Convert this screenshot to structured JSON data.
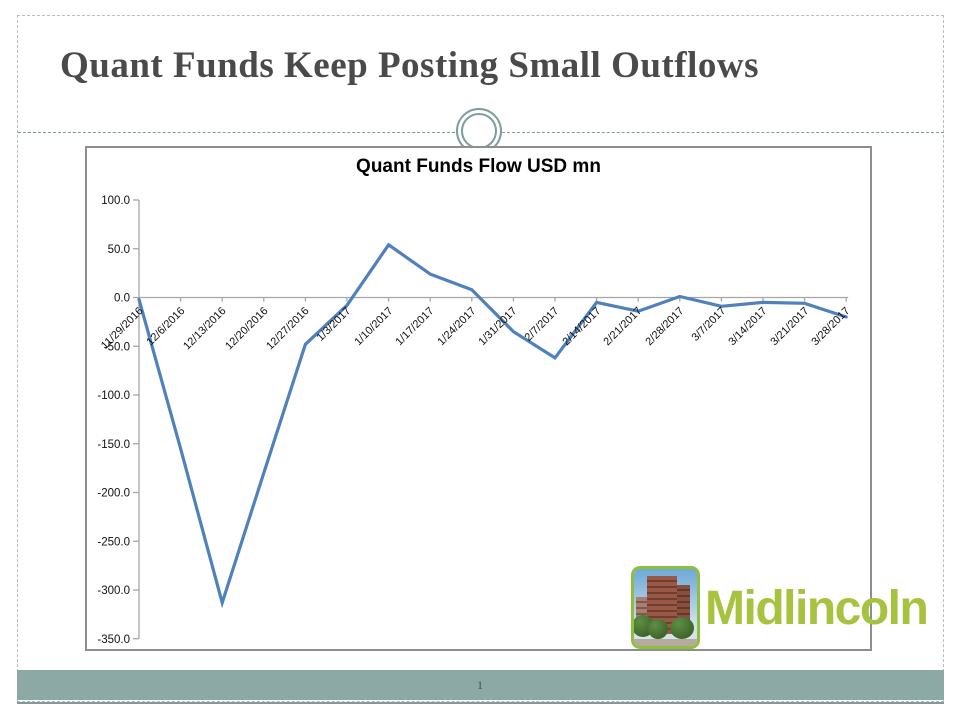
{
  "slide": {
    "title": "Quant Funds Keep Posting Small Outflows",
    "page_number": "1"
  },
  "chart_data": {
    "type": "line",
    "title": "Quant Funds Flow USD mn",
    "categories": [
      "11/29/2016",
      "12/6/2016",
      "12/13/2016",
      "12/20/2016",
      "12/27/2016",
      "1/3/2017",
      "1/10/2017",
      "1/17/2017",
      "1/24/2017",
      "1/31/2017",
      "2/7/2017",
      "2/14/2017",
      "2/21/2017",
      "2/28/2017",
      "3/7/2017",
      "3/14/2017",
      "3/21/2017",
      "3/28/2017"
    ],
    "series": [
      {
        "name": "Quant Funds Flow USD mn",
        "values": [
          -2,
          -155,
          -313,
          -180,
          -48,
          -8,
          54,
          24,
          8,
          -35,
          -62,
          -5,
          -14,
          1,
          -9,
          -5,
          -6,
          -20
        ]
      }
    ],
    "xlabel": "",
    "ylabel": "",
    "ylim": [
      -350,
      100
    ],
    "ytick_interval": 50,
    "ytick_labels": [
      "100.0",
      "50.0",
      "0.0",
      "-50.0",
      "-100.0",
      "-150.0",
      "-200.0",
      "-250.0",
      "-300.0",
      "-350.0"
    ],
    "grid": "zero-line-only",
    "legend": "none",
    "line_color": "#4F81BD",
    "axis_color": "#A6A6A6"
  },
  "logo": {
    "text": "Midlincoln",
    "text_color": "#A6C23F",
    "image": "brick-building-photo"
  },
  "theme": {
    "band_color": "#8DA9A5",
    "accent_line_color": "#7E9B96",
    "title_color": "#4A4A4A"
  }
}
